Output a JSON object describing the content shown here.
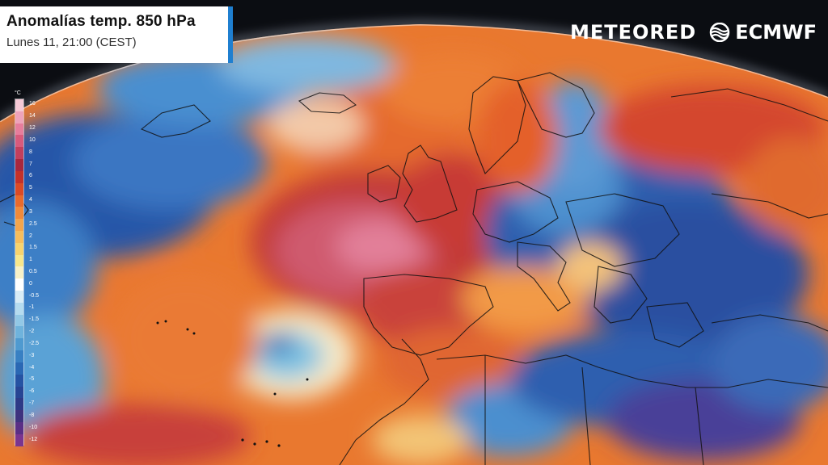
{
  "header": {
    "title": "Anomalías temp. 850 hPa",
    "subtitle": "Lunes 11, 21:00 (CEST)"
  },
  "brand": {
    "meteored": "METEORED",
    "ecmwf": "ECMWF"
  },
  "legend": {
    "unit": "°C",
    "labels": [
      "16",
      "14",
      "12",
      "10",
      "8",
      "7",
      "6",
      "5",
      "4",
      "3",
      "2.5",
      "2",
      "1.5",
      "1",
      "0.5",
      "0",
      "-0.5",
      "-1",
      "-1.5",
      "-2",
      "-2.5",
      "-3",
      "-4",
      "-5",
      "-6",
      "-7",
      "-8",
      "-10",
      "-12"
    ],
    "colors": [
      "#f5c9d6",
      "#eea3bb",
      "#e77d9c",
      "#d85a7c",
      "#c23f5d",
      "#a8283e",
      "#c4312a",
      "#db4a26",
      "#e96a2c",
      "#f08a3a",
      "#f3a54c",
      "#f6bd5c",
      "#f7d36e",
      "#f7e78c",
      "#f7f1c8",
      "#ffffff",
      "#d9ecf6",
      "#b5dbef",
      "#92c8e6",
      "#6fb3dc",
      "#4f9ad0",
      "#3880c3",
      "#2a68b4",
      "#2553a3",
      "#274594",
      "#2d3a87",
      "#3e337f",
      "#5a2f86",
      "#7a358f"
    ]
  },
  "colors": {
    "accent": "#1f7fd0",
    "ocean_background": "#0b0d12"
  }
}
